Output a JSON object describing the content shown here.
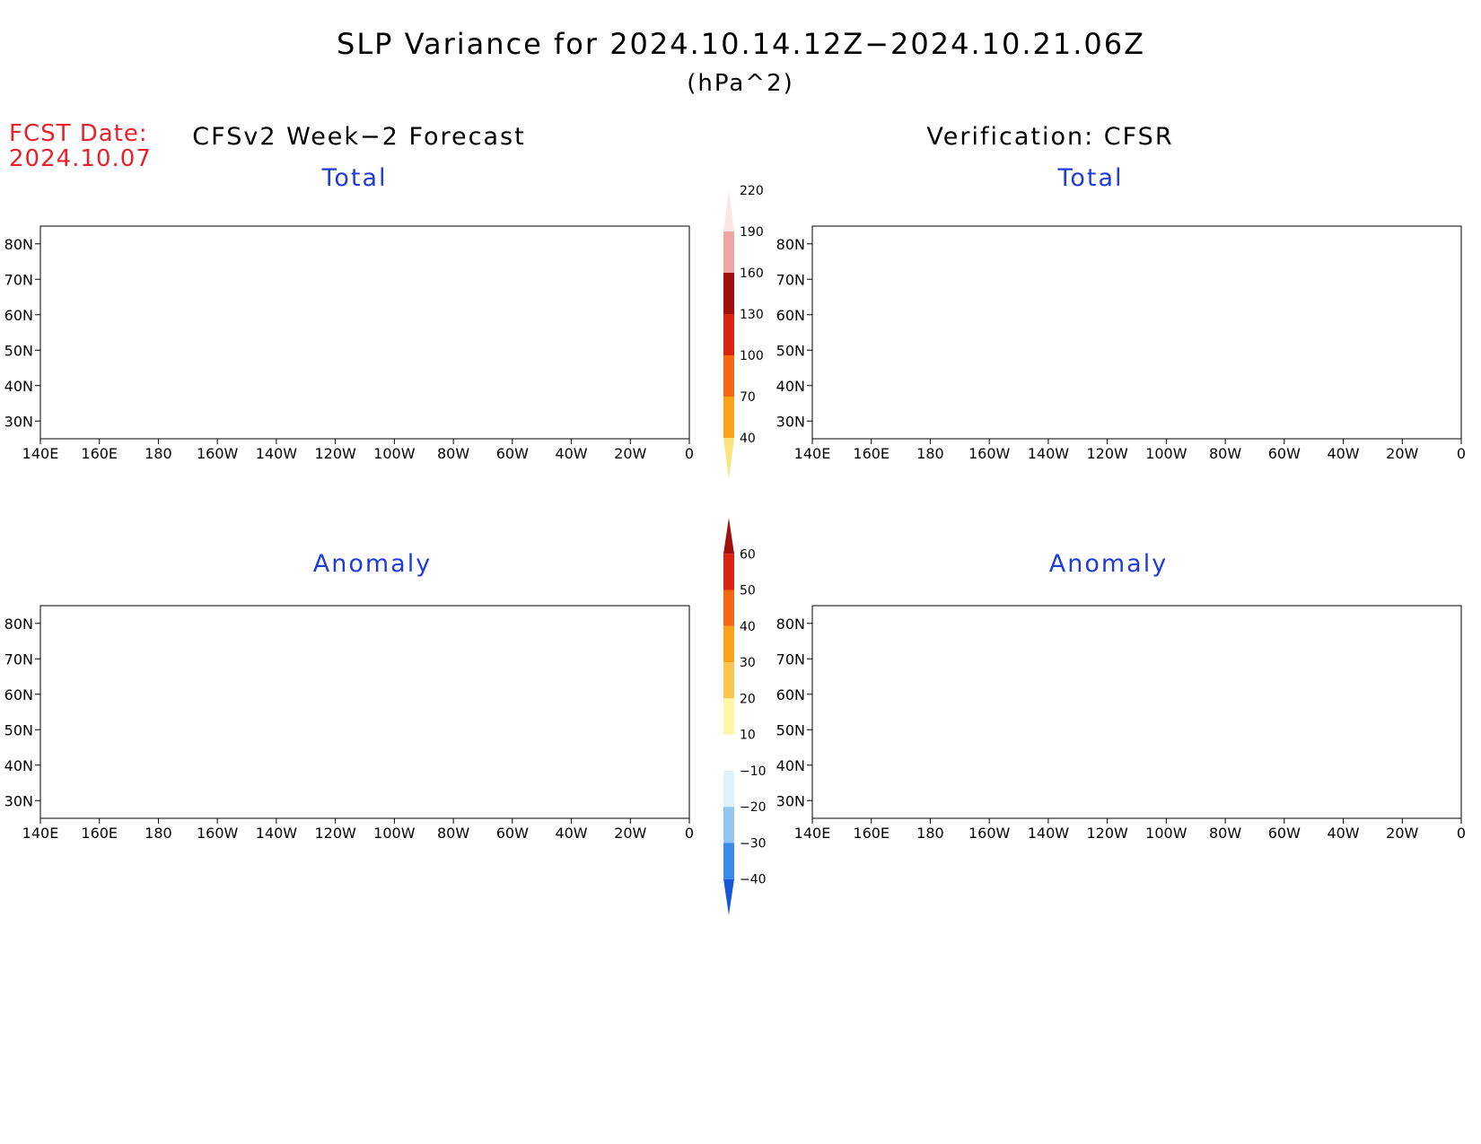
{
  "title": "SLP Variance for 2024.10.14.12Z−2024.10.21.06Z",
  "units": "(hPa^2)",
  "fcst_label": "FCST Date:",
  "fcst_date": "2024.10.07",
  "left_header": "CFSv2 Week−2 Forecast",
  "right_header": "Verification: CFSR",
  "panels": {
    "fcst_total": {
      "label": "Total"
    },
    "verif_total": {
      "label": "Total"
    },
    "fcst_anom": {
      "label": "Anomaly"
    },
    "verif_anom": {
      "label": "Anomaly"
    }
  },
  "lat_labels": [
    "80N",
    "70N",
    "60N",
    "50N",
    "40N",
    "30N"
  ],
  "lon_labels": [
    "140E",
    "160E",
    "180",
    "160W",
    "140W",
    "120W",
    "100W",
    "80W",
    "60W",
    "40W",
    "20W",
    "0"
  ],
  "total_colorbar": {
    "levels": [
      "40",
      "70",
      "100",
      "130",
      "160",
      "190",
      "220"
    ],
    "colors": [
      "#fbe37e",
      "#f9a31a",
      "#f16a12",
      "#d92411",
      "#a30f0f",
      "#f0a5a5",
      "#fbe6e6"
    ]
  },
  "anom_colorbar": {
    "levels": [
      "-40",
      "-30",
      "-20",
      "-10",
      "10",
      "20",
      "30",
      "40",
      "50",
      "60"
    ],
    "colors": [
      "#1757d6",
      "#3a8be8",
      "#94c6f2",
      "#dcf3fb",
      "#ffffff",
      "#fdf6a6",
      "#fbc54f",
      "#f9a31a",
      "#f16a12",
      "#d92411",
      "#a30f0f"
    ]
  }
}
